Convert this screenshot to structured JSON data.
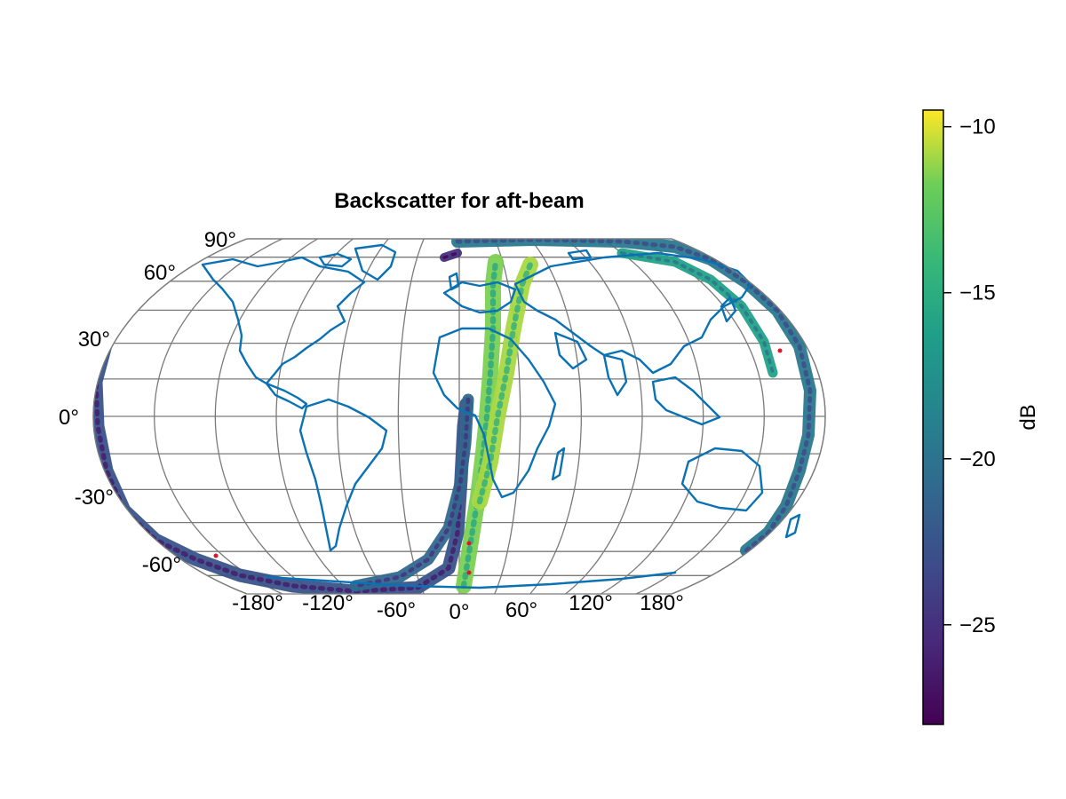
{
  "chart_data": {
    "type": "heatmap",
    "title": "Backscatter for aft-beam",
    "projection": "Robinson-like world map",
    "longitude_ticks": [
      "-180°",
      "-120°",
      "-60°",
      "0°",
      "60°",
      "120°",
      "180°"
    ],
    "latitude_ticks": [
      "90°",
      "60°",
      "30°",
      "0°",
      "-30°",
      "-60°"
    ],
    "colorbar": {
      "label": "dB",
      "colormap": "viridis",
      "range": [
        -28,
        -9.5
      ],
      "ticks": [
        "−10",
        "−15",
        "−20",
        "−25"
      ],
      "tick_values": [
        -10,
        -15,
        -20,
        -25
      ]
    },
    "coastline_color": "#0a72b4",
    "grid": true,
    "swaths": [
      {
        "segment": "western arc from north-east edge through south pole region",
        "lon": [
          190,
          160,
          130,
          90,
          60,
          30,
          10,
          0,
          -10,
          -60,
          -120,
          -180
        ],
        "lat": [
          85,
          80,
          70,
          45,
          20,
          -10,
          -30,
          -60,
          -82,
          -80,
          -70,
          -40
        ],
        "db_mean": -20
      },
      {
        "segment": "eastern arc",
        "lon": [
          190,
          200,
          205,
          200,
          185,
          170,
          150,
          130
        ],
        "lat": [
          75,
          50,
          20,
          0,
          -30,
          -55,
          -70,
          -80
        ],
        "db_mean": -19
      },
      {
        "segment": "atlantic meridional pass",
        "lon": [
          0,
          5,
          10,
          20,
          30,
          35
        ],
        "lat": [
          -80,
          -55,
          -30,
          0,
          30,
          60
        ],
        "db_mean": -12
      },
      {
        "segment": "africa-europe pass",
        "lon": [
          20,
          30,
          40,
          50,
          60,
          70
        ],
        "lat": [
          -25,
          0,
          20,
          40,
          60,
          75
        ],
        "db_mean": -11
      }
    ]
  }
}
